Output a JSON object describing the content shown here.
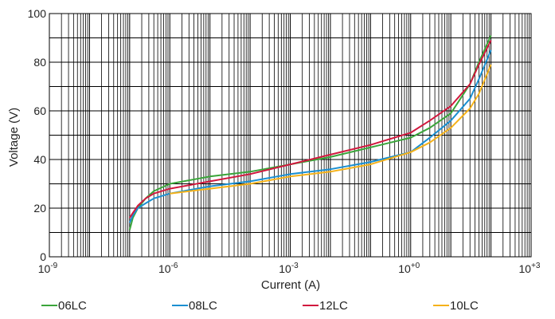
{
  "chart_data": {
    "type": "line",
    "title": "",
    "xlabel": "Current (A)",
    "ylabel": "Voltage (V)",
    "x_scale": "log",
    "xlim": [
      1e-09,
      1000
    ],
    "ylim": [
      0,
      100
    ],
    "y_ticks": [
      "0",
      "20",
      "40",
      "60",
      "80",
      "100"
    ],
    "x_ticks": [
      {
        "base": "10",
        "exp": "-9"
      },
      {
        "base": "10",
        "exp": "-6"
      },
      {
        "base": "10",
        "exp": "-3"
      },
      {
        "base": "10",
        "exp": "+0"
      },
      {
        "base": "10",
        "exp": "+3"
      }
    ],
    "grid": true,
    "legend_position": "bottom",
    "series": [
      {
        "name": "06LC",
        "color": "#3aa53a",
        "x": [
          1e-07,
          1.2e-07,
          1.6e-07,
          2.5e-07,
          4e-07,
          1e-06,
          1e-05,
          0.0001,
          0.001,
          0.01,
          0.1,
          1,
          3,
          10,
          30,
          50,
          100
        ],
        "y": [
          11,
          16,
          20,
          24,
          27,
          30,
          33,
          35,
          38,
          41,
          45,
          49,
          53,
          59,
          71,
          80,
          91
        ]
      },
      {
        "name": "08LC",
        "color": "#1a8fd1",
        "x": [
          1e-07,
          1.2e-07,
          1.6e-07,
          2.5e-07,
          4e-07,
          1e-06,
          1e-05,
          0.0001,
          0.001,
          0.01,
          0.1,
          1,
          3,
          10,
          30,
          50,
          100
        ],
        "y": [
          14,
          17,
          20,
          22,
          24,
          26,
          29,
          31,
          34,
          36,
          39,
          43,
          49,
          56,
          65,
          73,
          85
        ]
      },
      {
        "name": "12LC",
        "color": "#d1183e",
        "x": [
          1e-07,
          1.2e-07,
          1.6e-07,
          2.5e-07,
          4e-07,
          1e-06,
          1e-05,
          0.0001,
          0.001,
          0.01,
          0.1,
          1,
          3,
          10,
          30,
          50,
          100
        ],
        "y": [
          16,
          18,
          21,
          24,
          26,
          28,
          31,
          34,
          38,
          42,
          46,
          51,
          56,
          62,
          71,
          79,
          89
        ]
      },
      {
        "name": "10LC",
        "color": "#f5b21a",
        "x": [
          1e-06,
          1e-05,
          0.0001,
          0.001,
          0.01,
          0.1,
          1,
          3,
          10,
          30,
          50,
          100
        ],
        "y": [
          26,
          28,
          30,
          33,
          35,
          38,
          43,
          47,
          53,
          61,
          67,
          79
        ]
      }
    ]
  },
  "legend": [
    {
      "label": "06LC",
      "color": "#3aa53a"
    },
    {
      "label": "08LC",
      "color": "#1a8fd1"
    },
    {
      "label": "12LC",
      "color": "#d1183e"
    },
    {
      "label": "10LC",
      "color": "#f5b21a"
    }
  ]
}
